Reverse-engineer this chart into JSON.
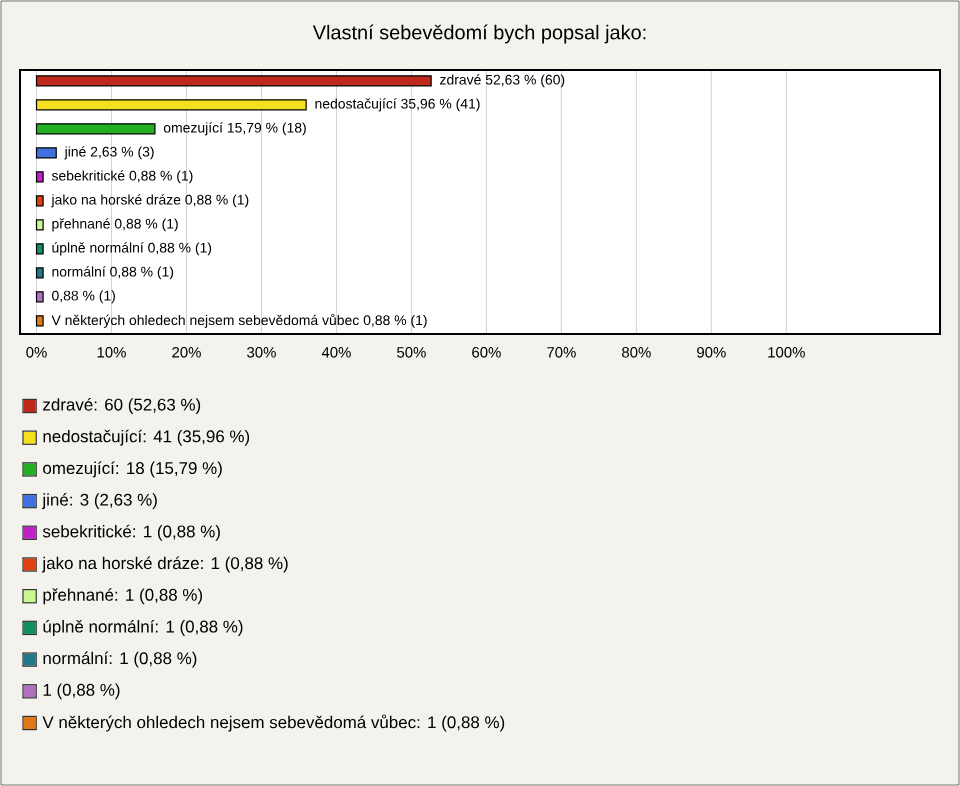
{
  "chart_data": {
    "type": "bar",
    "orientation": "horizontal",
    "title": "Vlastní sebevědomí bych popsal jako:",
    "categories": [
      "zdravé",
      "nedostačující",
      "omezující",
      "jiné",
      "sebekritické",
      "jako na horské dráze",
      "přehnané",
      "úplně normální",
      "normální",
      null,
      "V některých ohledech nejsem sebevědomá vůbec"
    ],
    "values": [
      52.63,
      35.96,
      15.79,
      2.63,
      0.88,
      0.88,
      0.88,
      0.88,
      0.88,
      0.88,
      0.88
    ],
    "colors": [
      "#c0281c",
      "#f5e020",
      "#22b022",
      "#4070e0",
      "#c020c8",
      "#e04010",
      "#c8f890",
      "#109060",
      "#207888",
      "#b070c0",
      "#e07818"
    ],
    "xlim": [
      -2.2,
      120.5
    ],
    "xticks": [
      {
        "value": 0,
        "label": "0%"
      },
      {
        "value": 10,
        "label": "10%"
      },
      {
        "value": 20,
        "label": "20%"
      },
      {
        "value": 30,
        "label": "30%"
      },
      {
        "value": 40,
        "label": "40%"
      },
      {
        "value": 50,
        "label": "50%"
      },
      {
        "value": 60,
        "label": "60%"
      },
      {
        "value": 70,
        "label": "70%"
      },
      {
        "value": 80,
        "label": "80%"
      },
      {
        "value": 90,
        "label": "90%"
      },
      {
        "value": 100,
        "label": "100%"
      }
    ],
    "grid": "x",
    "annotations": [
      "52,63 % (60)",
      "35,96 % (41)",
      "15,79 % (18)",
      "2,63 % (3)",
      "0,88 % (1)",
      "0,88 % (1)",
      "0,88 % (1)",
      "0,88 % (1)",
      "0,88 % (1)",
      "0,88 % (1)",
      "0,88 % (1)",
      "zdravé: 60 (52,63 %)",
      "nedostačující: 41 (35,96 %)",
      "omezující: 18 (15,79 %)",
      "jiné: 3 (2,63 %)",
      "sebekritické: 1 (0,88 %)",
      "jako na horské dráze: 1 (0,88 %)",
      "přehnané: 1 (0,88 %)",
      "úplně normální: 1 (0,88 %)",
      "normální: 1 (0,88 %)",
      "1 (0,88 %)",
      "V některých ohledech nejsem sebevědomá vůbec: 1 (0,88 %)"
    ]
  }
}
